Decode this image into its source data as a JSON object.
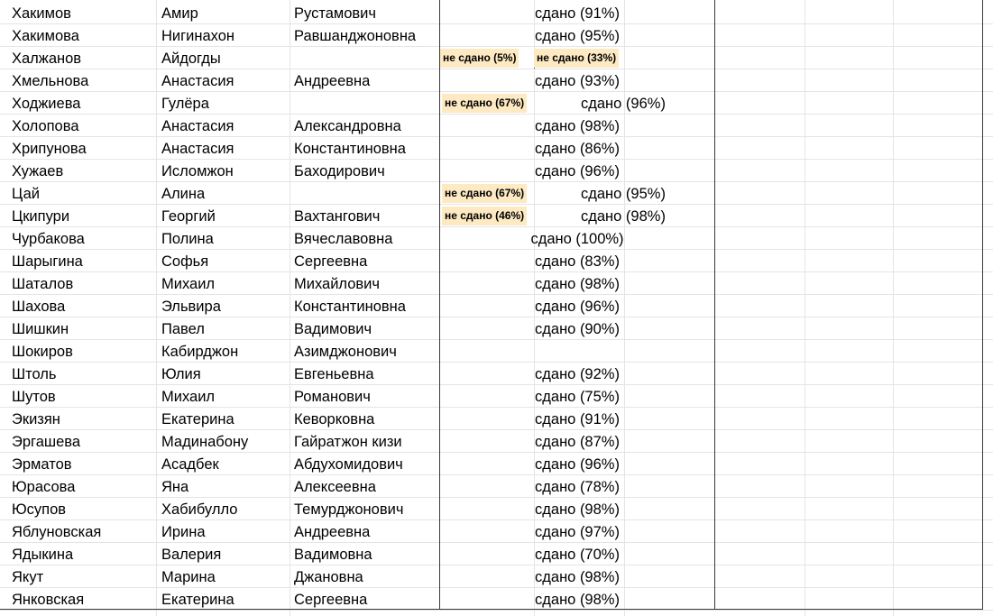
{
  "rows": [
    {
      "last": "Хакимов",
      "first": "Амир",
      "patronymic": "Рустамович",
      "result": "сдано (91%)"
    },
    {
      "last": "Хакимова",
      "first": "Нигинахон",
      "patronymic": "Равшанджоновна",
      "result": "сдано (95%)"
    },
    {
      "last": "Халжанов",
      "first": "Айдогды",
      "patronymic": "",
      "badges": [
        "не сдано (5%)",
        "не сдано (33%)"
      ],
      "result": ""
    },
    {
      "last": "Хмельнова",
      "first": "Анастасия",
      "patronymic": "Андреевна",
      "result": "сдано (93%)"
    },
    {
      "last": "Ходжиева",
      "first": "Гулёра",
      "patronymic": "",
      "badges": [
        "не сдано (67%)"
      ],
      "result": "сдано (96%)"
    },
    {
      "last": "Холопова",
      "first": "Анастасия",
      "patronymic": "Александровна",
      "result": "сдано (98%)"
    },
    {
      "last": "Хрипунова",
      "first": "Анастасия",
      "patronymic": "Константиновна",
      "result": "сдано (86%)"
    },
    {
      "last": "Хужаев",
      "first": "Исломжон",
      "patronymic": "Баходирович",
      "result": "сдано (96%)"
    },
    {
      "last": "Цай",
      "first": "Алина",
      "patronymic": "",
      "badges": [
        "не сдано (67%)"
      ],
      "result": "сдано (95%)"
    },
    {
      "last": "Цкипури",
      "first": "Георгий",
      "patronymic": "Вахтангович",
      "badges": [
        "не сдано (46%)"
      ],
      "result": "сдано (98%)"
    },
    {
      "last": "Чурбакова",
      "first": "Полина",
      "patronymic": "Вячеславовна",
      "result": "сдано (100%)"
    },
    {
      "last": "Шарыгина",
      "first": "Софья",
      "patronymic": "Сергеевна",
      "result": "сдано (83%)"
    },
    {
      "last": "Шаталов",
      "first": "Михаил",
      "patronymic": "Михайлович",
      "result": "сдано (98%)"
    },
    {
      "last": "Шахова",
      "first": "Эльвира",
      "patronymic": "Константиновна",
      "result": "сдано (96%)"
    },
    {
      "last": "Шишкин",
      "first": "Павел",
      "patronymic": "Вадимович",
      "result": "сдано (90%)"
    },
    {
      "last": "Шокиров",
      "first": "Кабирджон",
      "patronymic": "Азимджонович",
      "result": ""
    },
    {
      "last": "Штоль",
      "first": "Юлия",
      "patronymic": "Евгеньевна",
      "result": "сдано (92%)"
    },
    {
      "last": "Шутов",
      "first": "Михаил",
      "patronymic": "Романович",
      "result": "сдано (75%)"
    },
    {
      "last": "Экизян",
      "first": "Екатерина",
      "patronymic": "Кеворковна",
      "result": "сдано (91%)"
    },
    {
      "last": "Эргашева",
      "first": "Мадинабону",
      "patronymic": "Гайратжон кизи",
      "result": "сдано (87%)"
    },
    {
      "last": "Эрматов",
      "first": "Асадбек",
      "patronymic": "Абдухомидович",
      "result": "сдано (96%)"
    },
    {
      "last": "Юрасова",
      "first": "Яна",
      "patronymic": "Алексеевна",
      "result": "сдано (78%)"
    },
    {
      "last": "Юсупов",
      "first": "Хабибулло",
      "patronymic": "Темурджонович",
      "result": "сдано (98%)"
    },
    {
      "last": "Яблуновская",
      "first": "Ирина",
      "patronymic": "Андреевна",
      "result": "сдано (97%)"
    },
    {
      "last": "Ядыкина",
      "first": "Валерия",
      "patronymic": "Вадимовна",
      "result": "сдано (70%)"
    },
    {
      "last": "Якут",
      "first": "Марина",
      "patronymic": "Джановна",
      "result": "сдано (98%)"
    },
    {
      "last": "Янковская",
      "first": "Екатерина",
      "patronymic": "Сергеевна",
      "result": "сдано (98%)"
    }
  ],
  "colors": {
    "badge_background": "#fde9c2",
    "gridline": "#e4e4e4",
    "border": "#3a3a3a"
  }
}
